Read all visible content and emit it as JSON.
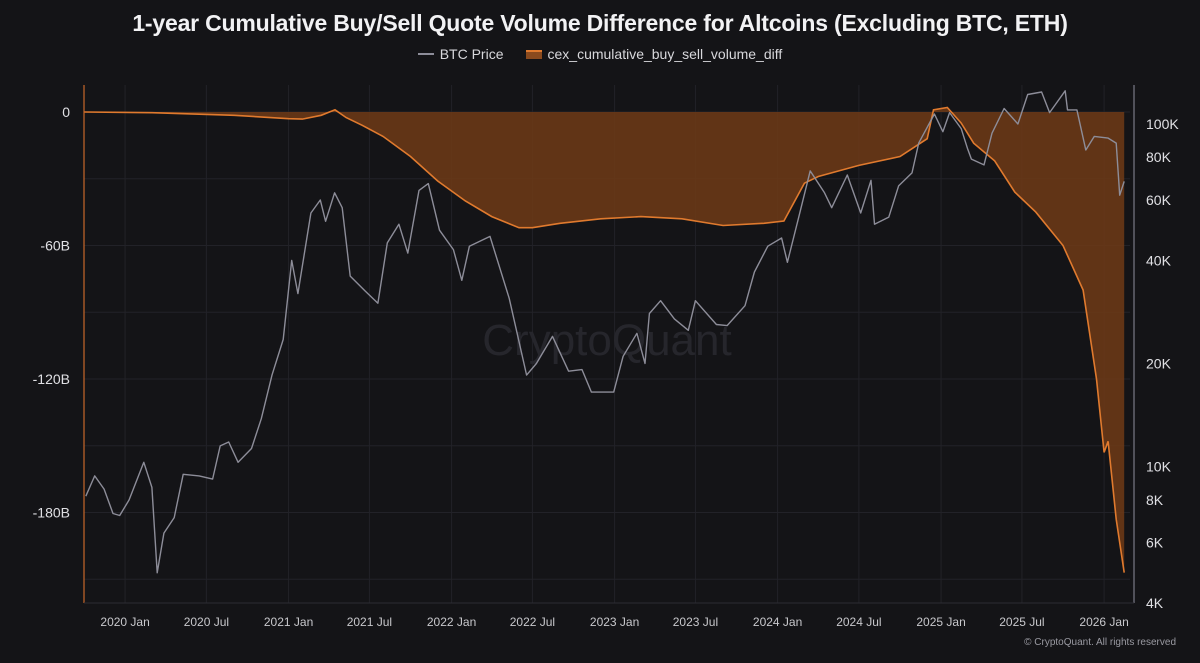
{
  "chart_data": {
    "type": "area",
    "title": "1-year Cumulative Buy/Sell Quote Volume Difference for Altcoins (Excluding BTC, ETH)",
    "watermark": "CryptoQuant",
    "copyright": "© CryptoQuant. All rights reserved",
    "x_tick_labels": [
      "2020 Jan",
      "2020 Jul",
      "2021 Jan",
      "2021 Jul",
      "2022 Jan",
      "2022 Jul",
      "2023 Jan",
      "2023 Jul",
      "2024 Jan",
      "2024 Jul",
      "2025 Jan",
      "2025 Jul",
      "2026 Jan"
    ],
    "x_range": [
      "2019-10-01",
      "2026-02-28"
    ],
    "left_axis": {
      "ticks": [
        0,
        -60,
        -120,
        -180
      ],
      "tick_labels": [
        "0",
        "-60B",
        "-120B",
        "-180B"
      ],
      "range_billions": [
        -220,
        0
      ]
    },
    "right_axis": {
      "scale": "log",
      "ticks": [
        4000,
        6000,
        8000,
        10000,
        20000,
        40000,
        60000,
        80000,
        100000
      ],
      "tick_labels": [
        "4K",
        "6K",
        "8K",
        "10K",
        "20K",
        "40K",
        "60K",
        "80K",
        "100K"
      ],
      "range": [
        4000,
        130000
      ]
    },
    "grid": true,
    "legend_placement": "top-center",
    "colors": {
      "background": "#141417",
      "area_fill": "#6e3a16",
      "area_line": "#e07a2e",
      "btc_line": "#8d8d99",
      "axis_left": "#c8682a",
      "axis_right": "#7a7a86",
      "grid": "#222228"
    },
    "series": [
      {
        "name": "BTC Price",
        "axis": "right",
        "points": [
          [
            "2019-10-05",
            8200
          ],
          [
            "2019-10-25",
            9400
          ],
          [
            "2019-11-15",
            8600
          ],
          [
            "2019-12-05",
            7300
          ],
          [
            "2019-12-20",
            7200
          ],
          [
            "2020-01-10",
            8000
          ],
          [
            "2020-02-12",
            10300
          ],
          [
            "2020-03-01",
            8700
          ],
          [
            "2020-03-13",
            4900
          ],
          [
            "2020-03-28",
            6400
          ],
          [
            "2020-04-20",
            7100
          ],
          [
            "2020-05-10",
            9500
          ],
          [
            "2020-06-15",
            9400
          ],
          [
            "2020-07-15",
            9200
          ],
          [
            "2020-08-01",
            11500
          ],
          [
            "2020-08-20",
            11800
          ],
          [
            "2020-09-10",
            10300
          ],
          [
            "2020-10-10",
            11300
          ],
          [
            "2020-11-01",
            13800
          ],
          [
            "2020-11-25",
            18500
          ],
          [
            "2020-12-20",
            23500
          ],
          [
            "2021-01-08",
            40000
          ],
          [
            "2021-01-22",
            32000
          ],
          [
            "2021-02-20",
            55000
          ],
          [
            "2021-03-13",
            60000
          ],
          [
            "2021-03-25",
            52000
          ],
          [
            "2021-04-14",
            63000
          ],
          [
            "2021-05-01",
            57000
          ],
          [
            "2021-05-19",
            36000
          ],
          [
            "2021-06-22",
            32500
          ],
          [
            "2021-07-20",
            30000
          ],
          [
            "2021-08-10",
            45000
          ],
          [
            "2021-09-05",
            51000
          ],
          [
            "2021-09-25",
            42000
          ],
          [
            "2021-10-20",
            64000
          ],
          [
            "2021-11-10",
            67000
          ],
          [
            "2021-12-05",
            49000
          ],
          [
            "2022-01-05",
            43000
          ],
          [
            "2022-01-24",
            35000
          ],
          [
            "2022-02-10",
            44000
          ],
          [
            "2022-03-28",
            47000
          ],
          [
            "2022-05-10",
            31000
          ],
          [
            "2022-06-18",
            18500
          ],
          [
            "2022-07-10",
            20000
          ],
          [
            "2022-08-15",
            24000
          ],
          [
            "2022-09-20",
            19000
          ],
          [
            "2022-10-20",
            19200
          ],
          [
            "2022-11-10",
            16500
          ],
          [
            "2022-12-30",
            16500
          ],
          [
            "2023-01-20",
            21000
          ],
          [
            "2023-02-20",
            24500
          ],
          [
            "2023-03-10",
            20000
          ],
          [
            "2023-03-20",
            28000
          ],
          [
            "2023-04-14",
            30500
          ],
          [
            "2023-05-15",
            27000
          ],
          [
            "2023-06-15",
            25000
          ],
          [
            "2023-07-01",
            30500
          ],
          [
            "2023-08-17",
            26000
          ],
          [
            "2023-09-10",
            25800
          ],
          [
            "2023-10-20",
            29500
          ],
          [
            "2023-11-10",
            37000
          ],
          [
            "2023-12-10",
            44000
          ],
          [
            "2024-01-10",
            46500
          ],
          [
            "2024-01-23",
            39500
          ],
          [
            "2024-02-15",
            52000
          ],
          [
            "2024-03-14",
            73000
          ],
          [
            "2024-04-15",
            63000
          ],
          [
            "2024-05-01",
            57000
          ],
          [
            "2024-06-05",
            71000
          ],
          [
            "2024-07-05",
            55000
          ],
          [
            "2024-07-28",
            68500
          ],
          [
            "2024-08-05",
            51000
          ],
          [
            "2024-09-06",
            53500
          ],
          [
            "2024-09-28",
            66000
          ],
          [
            "2024-10-28",
            72000
          ],
          [
            "2024-11-12",
            88000
          ],
          [
            "2024-12-05",
            100000
          ],
          [
            "2024-12-17",
            107000
          ],
          [
            "2025-01-05",
            95000
          ],
          [
            "2025-01-20",
            108000
          ],
          [
            "2025-02-15",
            97000
          ],
          [
            "2025-03-01",
            85000
          ],
          [
            "2025-03-10",
            79000
          ],
          [
            "2025-04-07",
            76000
          ],
          [
            "2025-04-25",
            94000
          ],
          [
            "2025-05-22",
            111000
          ],
          [
            "2025-06-22",
            100000
          ],
          [
            "2025-07-14",
            122000
          ],
          [
            "2025-08-14",
            124000
          ],
          [
            "2025-09-01",
            108000
          ],
          [
            "2025-10-06",
            125000
          ],
          [
            "2025-10-11",
            110000
          ],
          [
            "2025-11-01",
            110000
          ],
          [
            "2025-11-21",
            84000
          ],
          [
            "2025-12-10",
            92000
          ],
          [
            "2026-01-10",
            91000
          ],
          [
            "2026-01-28",
            88000
          ],
          [
            "2026-02-05",
            62000
          ],
          [
            "2026-02-15",
            68000
          ]
        ]
      },
      {
        "name": "cex_cumulative_buy_sell_volume_diff",
        "axis": "left",
        "unit": "B",
        "points": [
          [
            "2019-10-01",
            0
          ],
          [
            "2020-03-01",
            -0.3
          ],
          [
            "2020-09-01",
            -1.5
          ],
          [
            "2021-01-01",
            -3
          ],
          [
            "2021-02-01",
            -3.2
          ],
          [
            "2021-03-15",
            -1.5
          ],
          [
            "2021-04-15",
            1
          ],
          [
            "2021-05-10",
            -2.5
          ],
          [
            "2021-06-15",
            -6
          ],
          [
            "2021-08-01",
            -11
          ],
          [
            "2021-10-01",
            -20
          ],
          [
            "2021-12-01",
            -31
          ],
          [
            "2022-02-01",
            -40
          ],
          [
            "2022-04-01",
            -47
          ],
          [
            "2022-06-01",
            -52
          ],
          [
            "2022-07-01",
            -52
          ],
          [
            "2022-09-01",
            -50
          ],
          [
            "2022-12-01",
            -48
          ],
          [
            "2023-03-01",
            -47
          ],
          [
            "2023-06-01",
            -48
          ],
          [
            "2023-09-01",
            -51
          ],
          [
            "2023-12-01",
            -50
          ],
          [
            "2024-01-15",
            -49
          ],
          [
            "2024-03-01",
            -32
          ],
          [
            "2024-04-01",
            -29
          ],
          [
            "2024-07-01",
            -24
          ],
          [
            "2024-10-01",
            -20
          ],
          [
            "2024-12-01",
            -12
          ],
          [
            "2024-12-15",
            1
          ],
          [
            "2025-01-15",
            2
          ],
          [
            "2025-02-15",
            -5
          ],
          [
            "2025-03-15",
            -14
          ],
          [
            "2025-05-01",
            -22
          ],
          [
            "2025-06-15",
            -36
          ],
          [
            "2025-08-01",
            -45
          ],
          [
            "2025-10-01",
            -60
          ],
          [
            "2025-11-15",
            -80
          ],
          [
            "2025-12-15",
            -120
          ],
          [
            "2026-01-01",
            -153
          ],
          [
            "2026-01-10",
            -148
          ],
          [
            "2026-01-28",
            -183
          ],
          [
            "2026-02-15",
            -207
          ]
        ]
      }
    ]
  }
}
